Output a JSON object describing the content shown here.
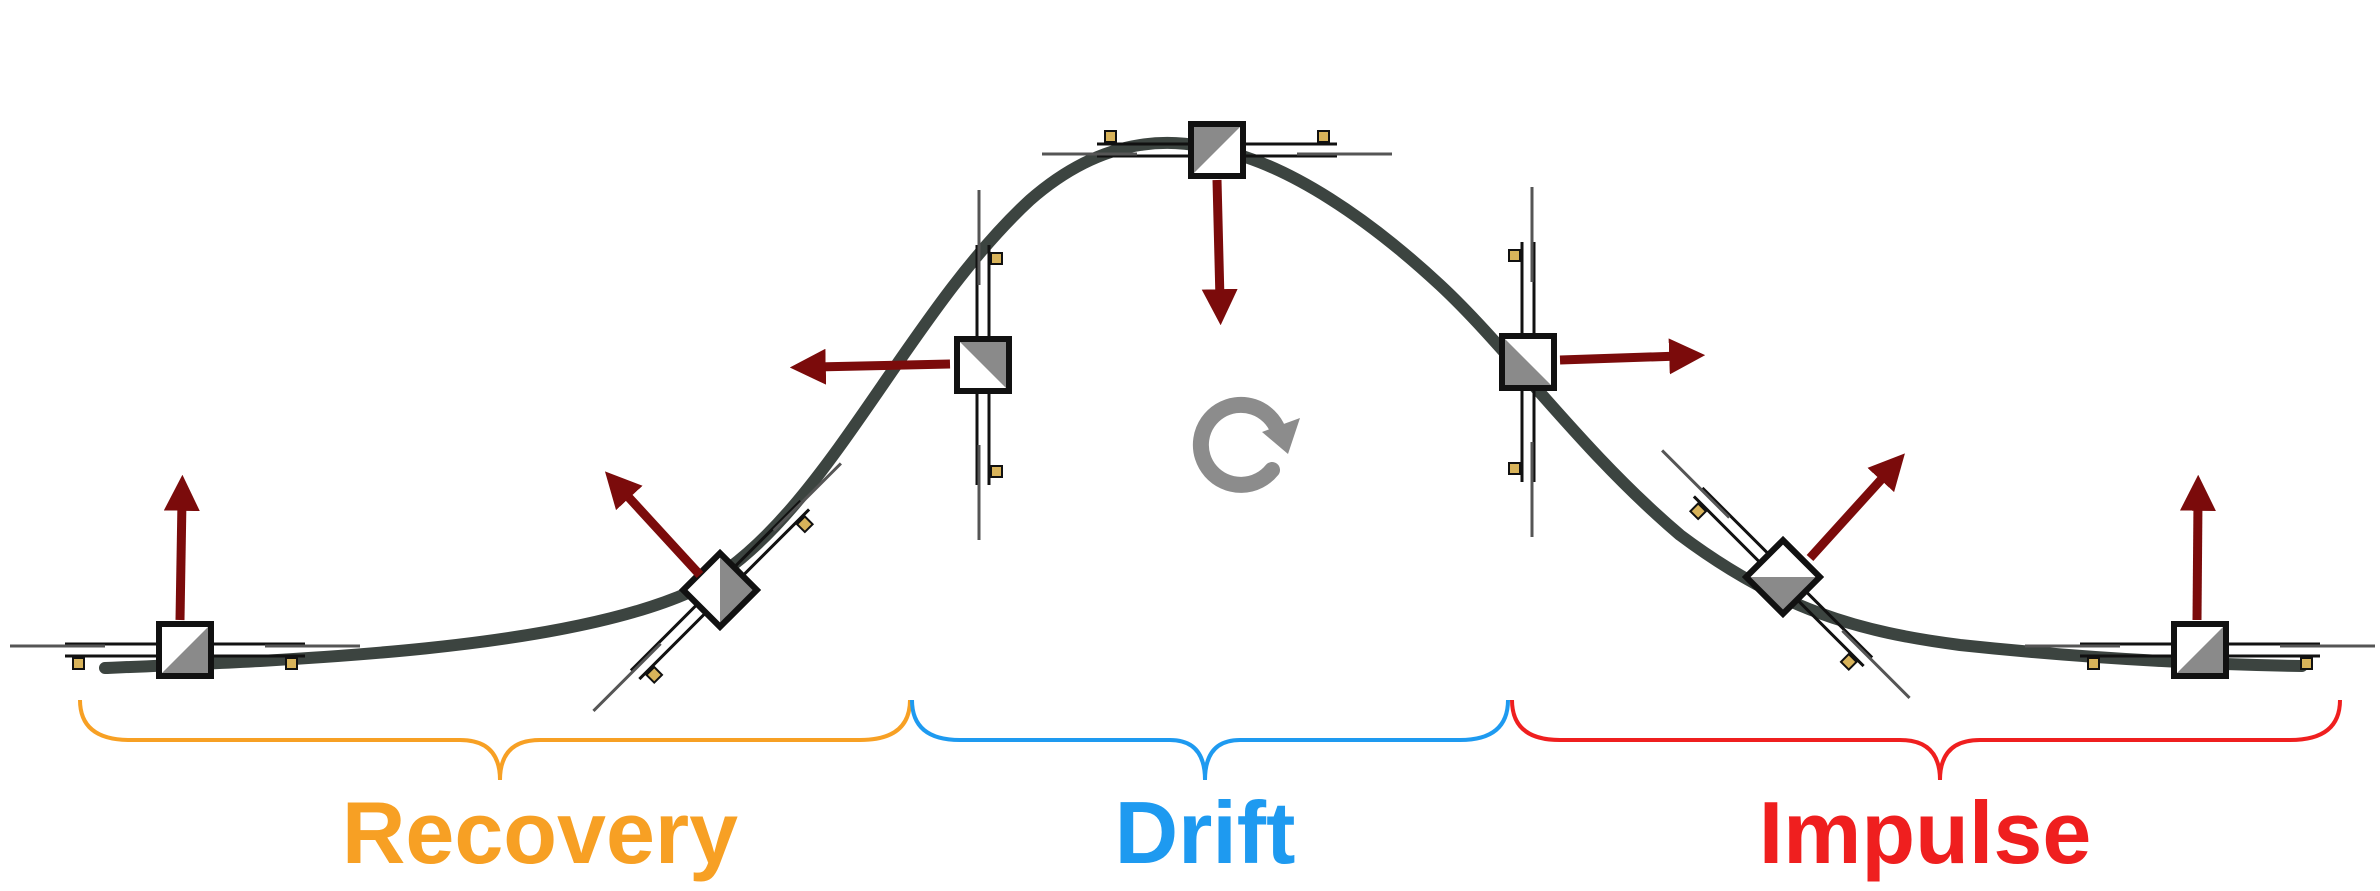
{
  "phases": [
    {
      "id": "recovery",
      "label": "Recovery",
      "color": "#f7a024"
    },
    {
      "id": "drift",
      "label": "Drift",
      "color": "#1e9af0"
    },
    {
      "id": "impulse",
      "label": "Impulse",
      "color": "#ef1f1f"
    }
  ],
  "colors": {
    "trajectory": "#3c4440",
    "thrust_arrow": "#7b0b0b",
    "drone_frame": "#111111",
    "drone_body_light": "#ffffff",
    "drone_body_dark": "#8a8a8a",
    "motor": "#d8b35a",
    "rotation_icon": "#8c8c8c"
  },
  "icons": [
    "drone-icon",
    "thrust-arrow-icon",
    "rotation-icon"
  ]
}
